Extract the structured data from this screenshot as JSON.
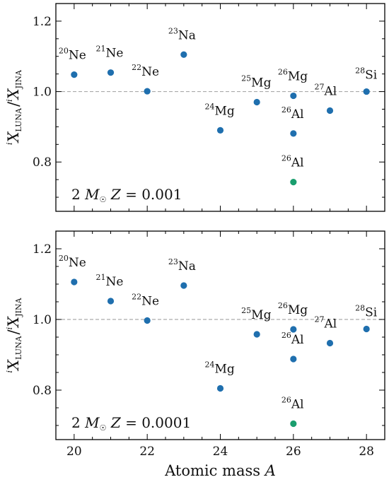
{
  "chart_data": [
    {
      "type": "scatter",
      "panel": "top",
      "annotation": "2 M☉ Z = 0.001",
      "ylabel": "iX_LUNA / iX_JINA",
      "xlabel": "",
      "xlim": [
        19.5,
        28.5
      ],
      "ylim": [
        0.66,
        1.25
      ],
      "xticks": [
        20,
        22,
        24,
        26,
        28
      ],
      "yticks": [
        0.8,
        1.0,
        1.2
      ],
      "reference_line": 1.0,
      "points": [
        {
          "x": 20,
          "y": 1.048,
          "mass": "20",
          "element": "Ne",
          "color": "#1f6fae"
        },
        {
          "x": 21,
          "y": 1.054,
          "mass": "21",
          "element": "Ne",
          "color": "#1f6fae"
        },
        {
          "x": 22,
          "y": 1.001,
          "mass": "22",
          "element": "Ne",
          "color": "#1f6fae"
        },
        {
          "x": 23,
          "y": 1.105,
          "mass": "23",
          "element": "Na",
          "color": "#1f6fae"
        },
        {
          "x": 24,
          "y": 0.89,
          "mass": "24",
          "element": "Mg",
          "color": "#1f6fae"
        },
        {
          "x": 25,
          "y": 0.97,
          "mass": "25",
          "element": "Mg",
          "color": "#1f6fae"
        },
        {
          "x": 26,
          "y": 0.988,
          "mass": "26",
          "element": "Mg",
          "color": "#1f6fae"
        },
        {
          "x": 26,
          "y": 0.881,
          "mass": "26",
          "element": "Al",
          "color": "#1f6fae"
        },
        {
          "x": 26,
          "y": 0.743,
          "mass": "26",
          "element": "Al",
          "color": "#1a9e6e"
        },
        {
          "x": 27,
          "y": 0.946,
          "mass": "27",
          "element": "Al",
          "color": "#1f6fae"
        },
        {
          "x": 28,
          "y": 1.0,
          "mass": "28",
          "element": "Si",
          "color": "#1f6fae"
        }
      ]
    },
    {
      "type": "scatter",
      "panel": "bottom",
      "annotation": "2 M☉ Z = 0.0001",
      "ylabel": "iX_LUNA / iX_JINA",
      "xlabel": "Atomic mass A",
      "xlim": [
        19.5,
        28.5
      ],
      "ylim": [
        0.66,
        1.25
      ],
      "xticks": [
        20,
        22,
        24,
        26,
        28
      ],
      "yticks": [
        0.8,
        1.0,
        1.2
      ],
      "reference_line": 1.0,
      "points": [
        {
          "x": 20,
          "y": 1.106,
          "mass": "20",
          "element": "Ne",
          "color": "#1f6fae"
        },
        {
          "x": 21,
          "y": 1.052,
          "mass": "21",
          "element": "Ne",
          "color": "#1f6fae"
        },
        {
          "x": 22,
          "y": 0.997,
          "mass": "22",
          "element": "Ne",
          "color": "#1f6fae"
        },
        {
          "x": 23,
          "y": 1.096,
          "mass": "23",
          "element": "Na",
          "color": "#1f6fae"
        },
        {
          "x": 24,
          "y": 0.805,
          "mass": "24",
          "element": "Mg",
          "color": "#1f6fae"
        },
        {
          "x": 25,
          "y": 0.958,
          "mass": "25",
          "element": "Mg",
          "color": "#1f6fae"
        },
        {
          "x": 26,
          "y": 0.972,
          "mass": "26",
          "element": "Mg",
          "color": "#1f6fae"
        },
        {
          "x": 26,
          "y": 0.888,
          "mass": "26",
          "element": "Al",
          "color": "#1f6fae"
        },
        {
          "x": 26,
          "y": 0.705,
          "mass": "26",
          "element": "Al",
          "color": "#1a9e6e"
        },
        {
          "x": 27,
          "y": 0.933,
          "mass": "27",
          "element": "Al",
          "color": "#1f6fae"
        },
        {
          "x": 28,
          "y": 0.973,
          "mass": "28",
          "element": "Si",
          "color": "#1f6fae"
        }
      ]
    }
  ]
}
